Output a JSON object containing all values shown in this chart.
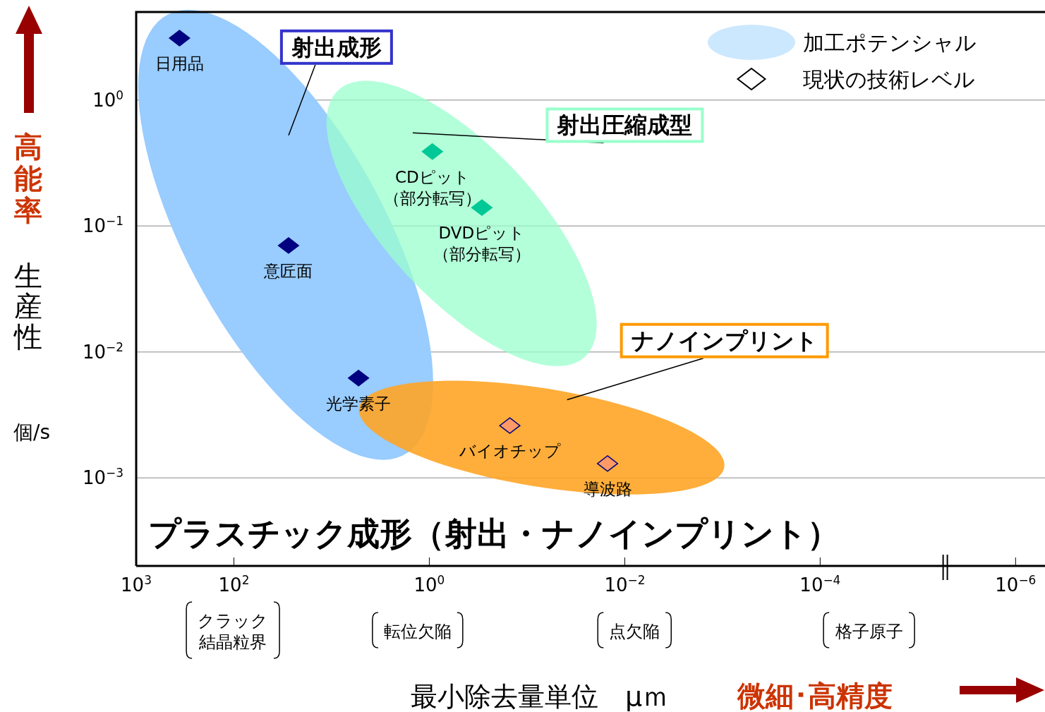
{
  "chart_data": {
    "type": "scatter",
    "title": "プラスチック成形（射出・ナノインプリント）",
    "xlabel": "最小除去量単位　μｍ",
    "ylabel": "生産性",
    "annotations": [
      "射出成形",
      "射出圧縮成型",
      "ナノインプリント",
      "加工ポテンシャル",
      "クラック",
      "結晶粒界",
      "転位欠陥",
      "点欠陥",
      "格子原子",
      "高能率",
      "微細･高精度",
      "個/s",
      {
        "text": "日用品",
        "x": 360,
        "y": 3.1
      },
      {
        "text": "意匠面",
        "x": 27.6,
        "y": 0.07
      },
      {
        "text": "光学素子",
        "x": 5.3,
        "y": 0.0062
      },
      {
        "text": "CDピット",
        "x": 0.93,
        "y": 0.39
      },
      {
        "text": "（部分転写）",
        "x": 0.93,
        "y": 0.39
      },
      {
        "text": "DVDピット",
        "x": 0.29,
        "y": 0.14
      },
      {
        "text": "（部分転写）",
        "x": 0.29,
        "y": 0.14
      },
      {
        "text": "バイオチップ",
        "x": 0.15,
        "y": 0.0026
      },
      {
        "text": "導波路",
        "x": 0.015,
        "y": 0.0013
      }
    ],
    "x": [
      360,
      27.6,
      5.3,
      0.93,
      0.29,
      0.15,
      0.015
    ],
    "series": [
      {
        "name": "現状の技術レベル",
        "values": [
          3.1,
          0.07,
          0.0062,
          0.39,
          0.14,
          0.0026,
          0.0013
        ],
        "colors": [
          "#000080",
          "#000080",
          "#000080",
          "#00c896",
          "#00c896",
          "#ff9966",
          "#ff9966"
        ]
      }
    ],
    "xlim": [
      1000,
      5e-07
    ],
    "ylim": [
      0.0002,
      5
    ],
    "xticks": [
      {
        "value": 1000,
        "label": "10$^{3}$"
      },
      {
        "value": 100,
        "label": "10$^{2}$"
      },
      {
        "value": 1,
        "label": "10$^{0}$"
      },
      {
        "value": 0.01,
        "label": "10$^{−2}$"
      },
      {
        "value": 0.0001,
        "label": "10$^{−4}$"
      },
      {
        "value": 1e-06,
        "label": "10$^{−6}$"
      }
    ],
    "yticks": [
      {
        "value": 1,
        "label": "10$^{0}$"
      },
      {
        "value": 0.1,
        "label": "10$^{−1}$"
      },
      {
        "value": 0.01,
        "label": "10$^{−2}$"
      },
      {
        "value": 0.001,
        "label": "10$^{−3}$"
      }
    ],
    "log": "xy",
    "grid": "y",
    "legend": "top right",
    "marker": "diamond"
  }
}
